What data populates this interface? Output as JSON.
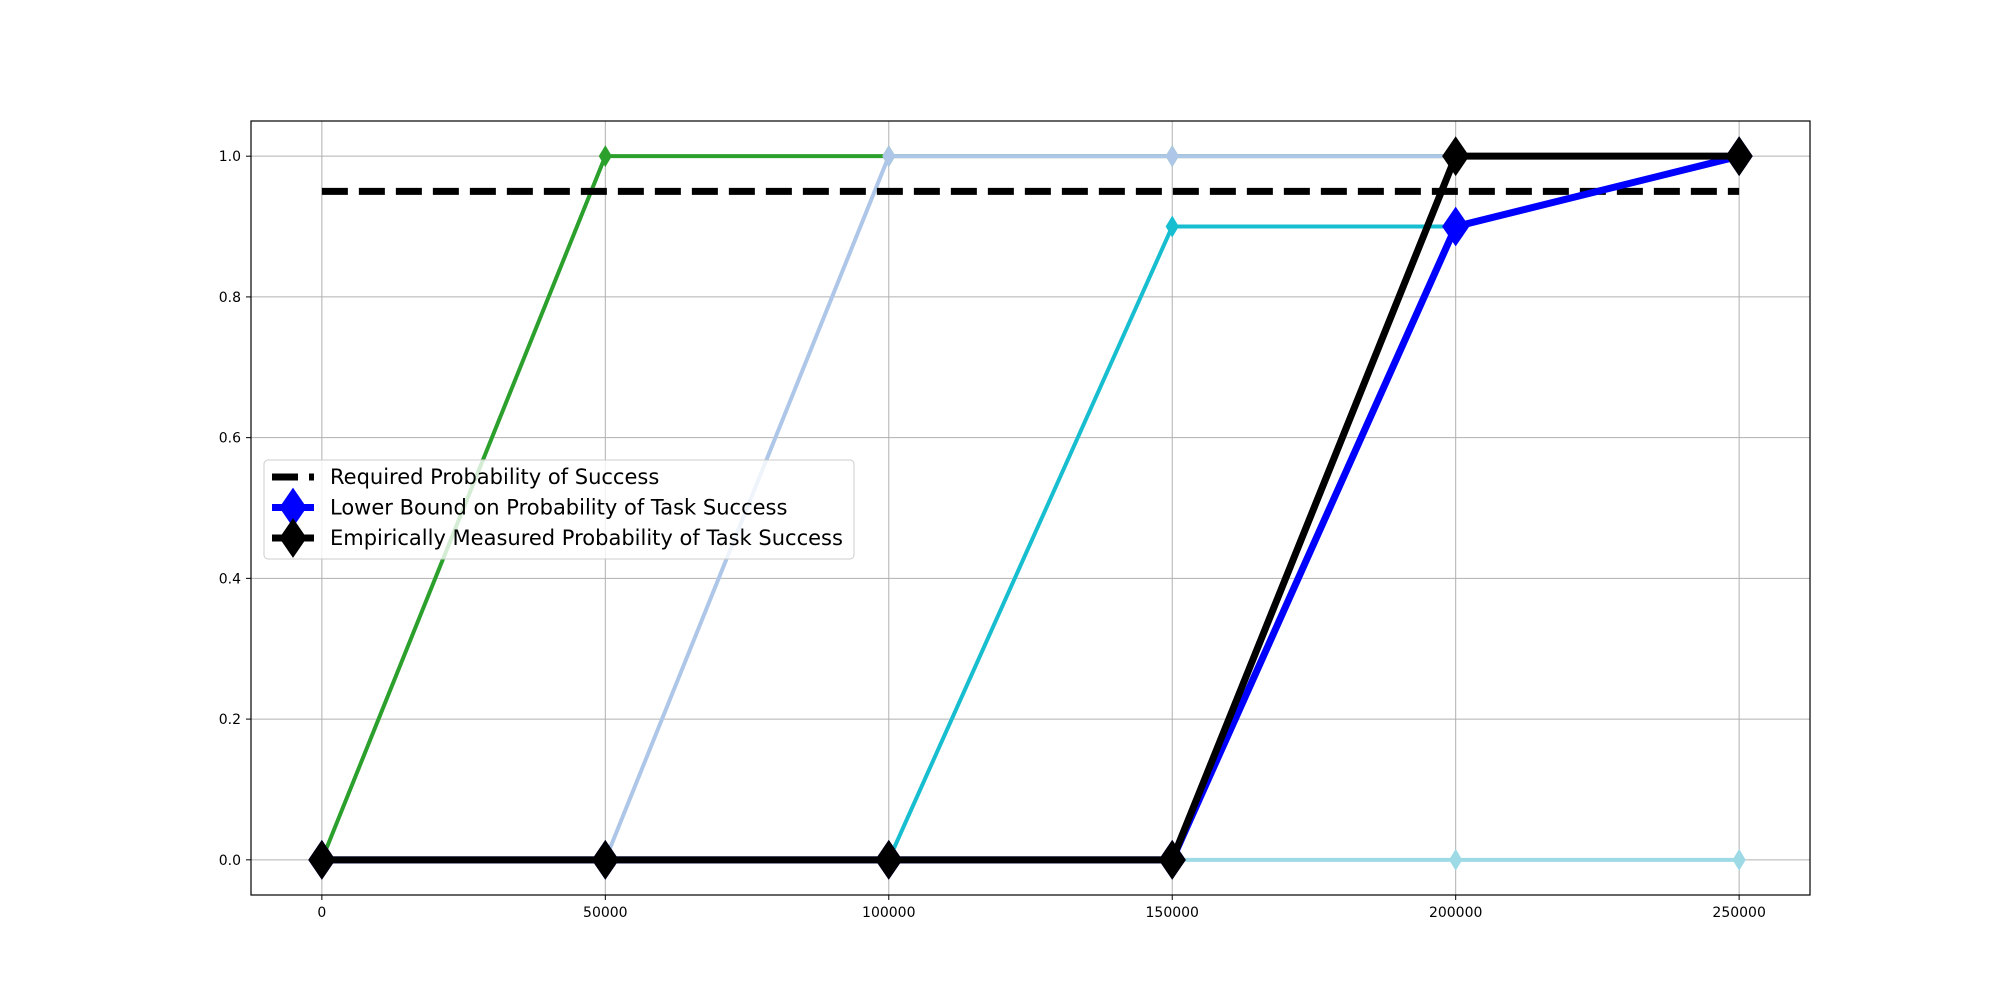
{
  "chart_data": {
    "type": "line",
    "title": "",
    "xlabel": "",
    "ylabel": "",
    "x": [
      0,
      50000,
      100000,
      150000,
      200000,
      250000
    ],
    "xlim": [
      -12500,
      262500
    ],
    "ylim": [
      -0.05,
      1.05
    ],
    "xticks": [
      0,
      50000,
      100000,
      150000,
      200000,
      250000
    ],
    "yticks": [
      0.0,
      0.2,
      0.4,
      0.6,
      0.8,
      1.0
    ],
    "xtick_labels": [
      "0",
      "50000",
      "100000",
      "150000",
      "200000",
      "250000"
    ],
    "ytick_labels": [
      "0.0",
      "0.2",
      "0.4",
      "0.6",
      "0.8",
      "1.0"
    ],
    "grid": true,
    "legend_placement": "center-left",
    "series": [
      {
        "values": [
          0,
          1,
          1,
          1,
          1,
          1
        ],
        "color": "#2ca02c",
        "style": "thin"
      },
      {
        "values": [
          0,
          0,
          1,
          1,
          1,
          1
        ],
        "color": "#aec7e8",
        "style": "thin"
      },
      {
        "values": [
          0,
          0,
          0,
          0.9,
          0.9,
          1
        ],
        "color": "#17becf",
        "style": "thin"
      },
      {
        "values": [
          0,
          0,
          0,
          0,
          0,
          0
        ],
        "color": "#9edae5",
        "style": "thin"
      },
      {
        "name": "Required Probability of Success",
        "values": [
          0.95,
          0.95,
          0.95,
          0.95,
          0.95,
          0.95
        ],
        "color": "#000000",
        "style": "dashed"
      },
      {
        "name": "Lower Bound on Probability of Task Success",
        "values": [
          0,
          0,
          0,
          0,
          0.9,
          1
        ],
        "color": "#0000ff",
        "style": "thick"
      },
      {
        "name": "Empirically Measured Probability of Task Success",
        "values": [
          0,
          0,
          0,
          0,
          1,
          1
        ],
        "color": "#000000",
        "style": "thick"
      }
    ]
  }
}
